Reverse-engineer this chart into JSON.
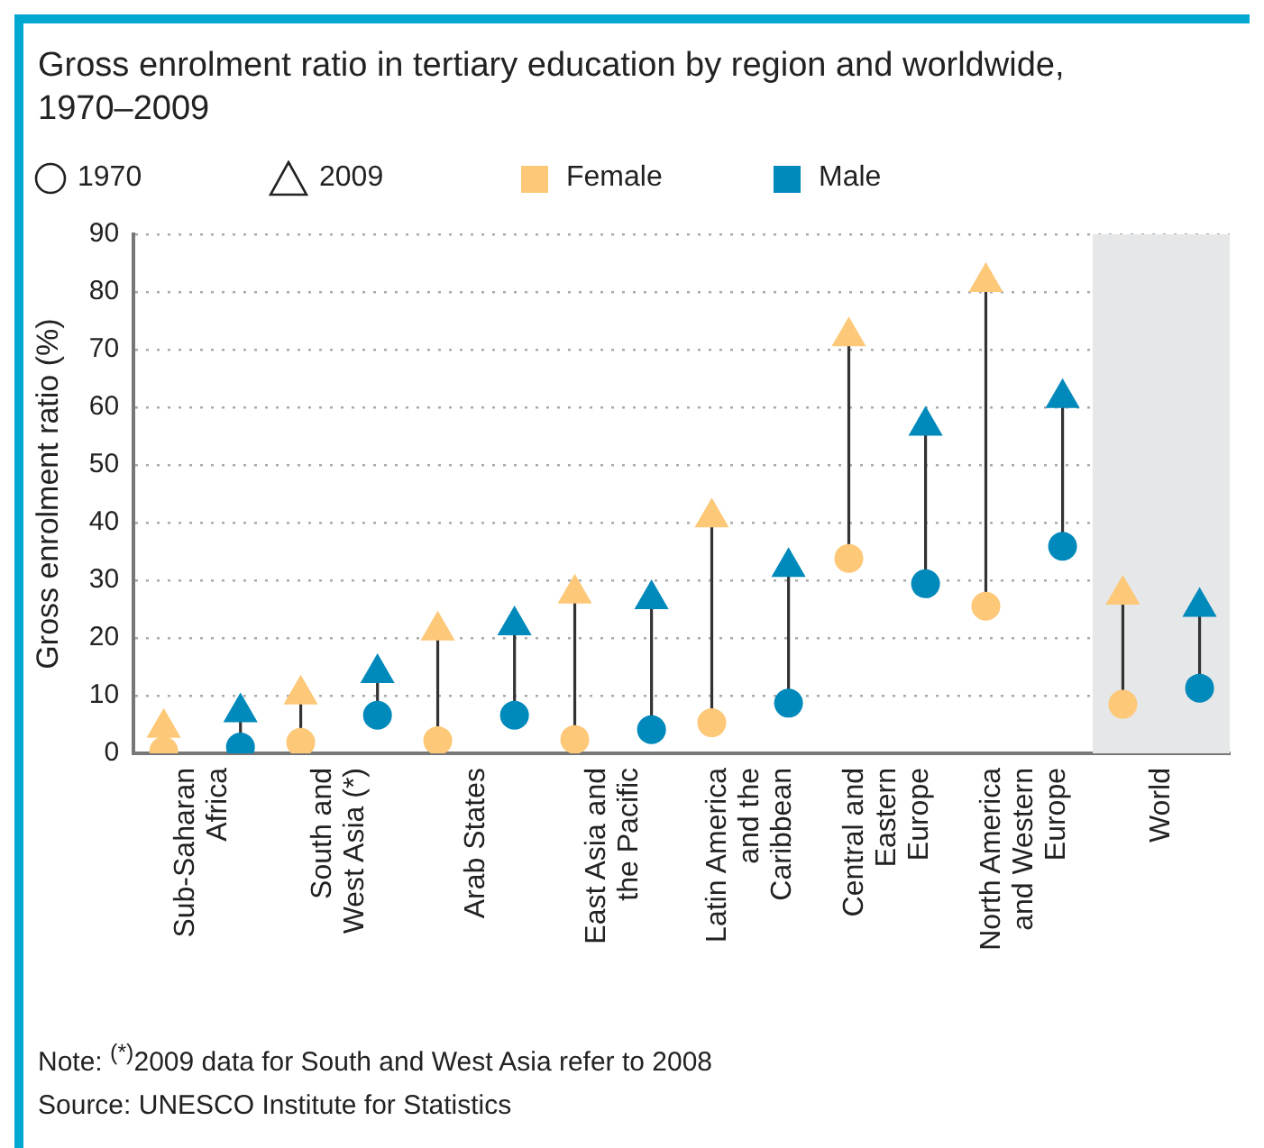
{
  "chart_data": {
    "type": "scatter",
    "title": "Gross enrolment ratio in tertiary education by region and worldwide,\n1970–2009",
    "ylabel": "Gross enrolment ratio (%)",
    "categories": [
      "Sub-Saharan\nAfrica",
      "South and\nWest Asia (*)",
      "Arab States",
      "East Asia and\nthe Pacific",
      "Latin America\nand the\nCaribbean",
      "Central and\nEastern\nEurope",
      "North America\nand Western\nEurope",
      "World"
    ],
    "series": [
      {
        "name": "Female",
        "color": "#fdc878",
        "marker": "circle",
        "values": [
          0.4,
          1.9,
          2.2,
          2.4,
          5.3,
          33.8,
          25.5,
          8.5
        ]
      },
      {
        "color": "#fdc878",
        "marker": "triangle",
        "values": [
          4.4,
          10.2,
          21.3,
          27.7,
          40.9,
          72.3,
          81.7,
          27.5
        ]
      },
      {
        "name": "Male",
        "color": "#0089bb",
        "marker": "circle",
        "values": [
          1.1,
          6.6,
          6.6,
          4.1,
          8.7,
          29.4,
          35.9,
          11.3
        ]
      },
      {
        "color": "#0089bb",
        "marker": "triangle",
        "values": [
          7.1,
          13.9,
          22.2,
          26.7,
          32.3,
          56.8,
          61.6,
          25.4
        ]
      }
    ],
    "ylim": [
      0,
      90
    ],
    "yticks": [
      0,
      10,
      20,
      30,
      40,
      50,
      60,
      70,
      80,
      90
    ],
    "grid": "y",
    "legend": "top left",
    "bands": [
      {
        "axis": "x",
        "from": "World",
        "to": "World",
        "color": "#e6e7e8"
      }
    ],
    "annotations": [
      "1970",
      "2009",
      "Note: $^{(*)}$2009 data for South and West Asia refer to 2008",
      "Source: UNESCO Institute for Statistics"
    ]
  }
}
